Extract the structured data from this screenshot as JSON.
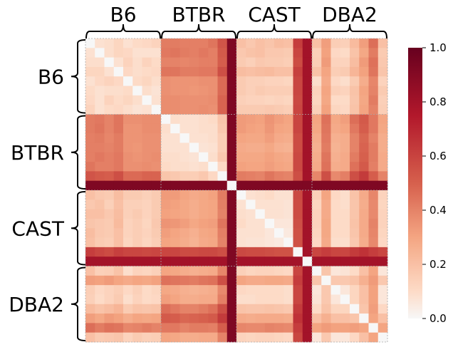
{
  "chart_data": {
    "type": "heatmap",
    "title": "",
    "xlabel": "",
    "ylabel": "",
    "groups": [
      "B6",
      "BTBR",
      "CAST",
      "DBA2"
    ],
    "group_size": 8,
    "colormap": "RdBu_r (upper half: white to dark red)",
    "colorbar": {
      "range": [
        0,
        1
      ],
      "ticks": [
        "0.0",
        "0.2",
        "0.4",
        "0.6",
        "0.8",
        "1.0"
      ],
      "low_color": "#f7f7f7",
      "high_color": "#67001f"
    },
    "gridlines": "dotted grey between groups",
    "matrix": [
      [
        0.0,
        0.08,
        0.09,
        0.12,
        0.08,
        0.1,
        0.11,
        0.13,
        0.42,
        0.42,
        0.41,
        0.41,
        0.41,
        0.44,
        0.54,
        0.92,
        0.2,
        0.17,
        0.2,
        0.18,
        0.21,
        0.2,
        0.62,
        0.8,
        0.2,
        0.32,
        0.15,
        0.14,
        0.22,
        0.32,
        0.46,
        0.2
      ],
      [
        0.08,
        0.0,
        0.09,
        0.12,
        0.11,
        0.08,
        0.08,
        0.08,
        0.43,
        0.44,
        0.42,
        0.41,
        0.43,
        0.41,
        0.52,
        0.92,
        0.17,
        0.19,
        0.2,
        0.17,
        0.17,
        0.16,
        0.59,
        0.8,
        0.14,
        0.31,
        0.11,
        0.1,
        0.19,
        0.29,
        0.42,
        0.16
      ],
      [
        0.09,
        0.09,
        0.0,
        0.08,
        0.13,
        0.09,
        0.13,
        0.1,
        0.4,
        0.4,
        0.39,
        0.4,
        0.41,
        0.41,
        0.51,
        0.92,
        0.16,
        0.14,
        0.17,
        0.16,
        0.16,
        0.15,
        0.57,
        0.8,
        0.15,
        0.33,
        0.13,
        0.13,
        0.21,
        0.33,
        0.45,
        0.17
      ],
      [
        0.12,
        0.12,
        0.08,
        0.0,
        0.11,
        0.09,
        0.1,
        0.11,
        0.44,
        0.44,
        0.42,
        0.42,
        0.43,
        0.43,
        0.56,
        0.92,
        0.21,
        0.2,
        0.21,
        0.22,
        0.2,
        0.2,
        0.61,
        0.8,
        0.19,
        0.3,
        0.15,
        0.16,
        0.24,
        0.31,
        0.44,
        0.18
      ],
      [
        0.08,
        0.11,
        0.13,
        0.11,
        0.0,
        0.1,
        0.12,
        0.09,
        0.36,
        0.35,
        0.35,
        0.35,
        0.36,
        0.36,
        0.47,
        0.92,
        0.16,
        0.14,
        0.14,
        0.13,
        0.13,
        0.12,
        0.59,
        0.8,
        0.09,
        0.28,
        0.11,
        0.09,
        0.16,
        0.27,
        0.39,
        0.13
      ],
      [
        0.1,
        0.08,
        0.09,
        0.09,
        0.1,
        0.0,
        0.09,
        0.07,
        0.36,
        0.35,
        0.35,
        0.34,
        0.35,
        0.36,
        0.47,
        0.92,
        0.16,
        0.14,
        0.16,
        0.15,
        0.15,
        0.15,
        0.59,
        0.8,
        0.13,
        0.3,
        0.14,
        0.13,
        0.19,
        0.3,
        0.4,
        0.16
      ],
      [
        0.11,
        0.08,
        0.13,
        0.1,
        0.12,
        0.09,
        0.0,
        0.08,
        0.37,
        0.37,
        0.36,
        0.36,
        0.36,
        0.37,
        0.49,
        0.92,
        0.14,
        0.13,
        0.13,
        0.12,
        0.13,
        0.12,
        0.58,
        0.8,
        0.12,
        0.29,
        0.1,
        0.1,
        0.18,
        0.29,
        0.42,
        0.14
      ],
      [
        0.13,
        0.08,
        0.1,
        0.11,
        0.09,
        0.07,
        0.08,
        0.0,
        0.37,
        0.37,
        0.36,
        0.36,
        0.37,
        0.36,
        0.49,
        0.92,
        0.16,
        0.16,
        0.16,
        0.17,
        0.16,
        0.15,
        0.59,
        0.8,
        0.14,
        0.31,
        0.12,
        0.11,
        0.19,
        0.3,
        0.4,
        0.15
      ],
      [
        0.42,
        0.43,
        0.4,
        0.44,
        0.36,
        0.36,
        0.37,
        0.37,
        0.0,
        0.09,
        0.08,
        0.08,
        0.09,
        0.1,
        0.18,
        0.92,
        0.33,
        0.32,
        0.31,
        0.35,
        0.32,
        0.3,
        0.59,
        0.8,
        0.3,
        0.45,
        0.29,
        0.32,
        0.46,
        0.52,
        0.43,
        0.3
      ],
      [
        0.42,
        0.44,
        0.4,
        0.44,
        0.35,
        0.35,
        0.37,
        0.37,
        0.09,
        0.0,
        0.08,
        0.08,
        0.09,
        0.09,
        0.17,
        0.92,
        0.33,
        0.31,
        0.3,
        0.34,
        0.3,
        0.29,
        0.59,
        0.8,
        0.29,
        0.44,
        0.28,
        0.3,
        0.43,
        0.51,
        0.43,
        0.29
      ],
      [
        0.41,
        0.42,
        0.39,
        0.42,
        0.35,
        0.35,
        0.36,
        0.36,
        0.08,
        0.08,
        0.0,
        0.08,
        0.08,
        0.09,
        0.15,
        0.92,
        0.3,
        0.29,
        0.29,
        0.32,
        0.28,
        0.27,
        0.57,
        0.8,
        0.27,
        0.43,
        0.26,
        0.27,
        0.4,
        0.48,
        0.4,
        0.27
      ],
      [
        0.41,
        0.41,
        0.4,
        0.42,
        0.35,
        0.34,
        0.36,
        0.36,
        0.08,
        0.08,
        0.08,
        0.0,
        0.07,
        0.08,
        0.15,
        0.92,
        0.28,
        0.27,
        0.27,
        0.29,
        0.26,
        0.25,
        0.57,
        0.8,
        0.26,
        0.42,
        0.25,
        0.27,
        0.4,
        0.49,
        0.42,
        0.27
      ],
      [
        0.41,
        0.43,
        0.41,
        0.43,
        0.36,
        0.35,
        0.36,
        0.37,
        0.09,
        0.09,
        0.08,
        0.07,
        0.0,
        0.09,
        0.17,
        0.92,
        0.29,
        0.29,
        0.29,
        0.31,
        0.29,
        0.28,
        0.58,
        0.8,
        0.27,
        0.44,
        0.26,
        0.28,
        0.42,
        0.5,
        0.42,
        0.28
      ],
      [
        0.44,
        0.41,
        0.41,
        0.43,
        0.36,
        0.36,
        0.37,
        0.36,
        0.1,
        0.09,
        0.09,
        0.08,
        0.09,
        0.0,
        0.11,
        0.92,
        0.31,
        0.3,
        0.3,
        0.32,
        0.3,
        0.29,
        0.58,
        0.8,
        0.28,
        0.45,
        0.27,
        0.28,
        0.45,
        0.52,
        0.41,
        0.28
      ],
      [
        0.54,
        0.52,
        0.51,
        0.56,
        0.47,
        0.47,
        0.49,
        0.49,
        0.18,
        0.17,
        0.15,
        0.15,
        0.17,
        0.11,
        0.0,
        0.92,
        0.42,
        0.41,
        0.4,
        0.44,
        0.41,
        0.4,
        0.56,
        0.8,
        0.39,
        0.56,
        0.38,
        0.41,
        0.56,
        0.63,
        0.51,
        0.4
      ],
      [
        0.92,
        0.92,
        0.92,
        0.92,
        0.92,
        0.92,
        0.92,
        0.92,
        0.92,
        0.92,
        0.92,
        0.92,
        0.92,
        0.92,
        0.92,
        0.0,
        0.92,
        0.92,
        0.92,
        0.92,
        0.92,
        0.92,
        0.92,
        0.92,
        0.92,
        0.92,
        0.92,
        0.92,
        0.92,
        0.92,
        0.92,
        0.92
      ],
      [
        0.2,
        0.17,
        0.16,
        0.21,
        0.16,
        0.16,
        0.14,
        0.16,
        0.33,
        0.33,
        0.3,
        0.28,
        0.29,
        0.31,
        0.42,
        0.92,
        0.0,
        0.08,
        0.09,
        0.1,
        0.08,
        0.08,
        0.58,
        0.8,
        0.14,
        0.3,
        0.11,
        0.09,
        0.19,
        0.28,
        0.39,
        0.13
      ],
      [
        0.17,
        0.19,
        0.14,
        0.2,
        0.14,
        0.14,
        0.13,
        0.16,
        0.32,
        0.31,
        0.29,
        0.27,
        0.29,
        0.3,
        0.41,
        0.92,
        0.08,
        0.0,
        0.08,
        0.08,
        0.08,
        0.07,
        0.57,
        0.8,
        0.12,
        0.28,
        0.1,
        0.09,
        0.18,
        0.27,
        0.38,
        0.12
      ],
      [
        0.2,
        0.2,
        0.17,
        0.21,
        0.14,
        0.16,
        0.13,
        0.16,
        0.31,
        0.3,
        0.29,
        0.27,
        0.29,
        0.3,
        0.4,
        0.92,
        0.09,
        0.08,
        0.0,
        0.08,
        0.08,
        0.07,
        0.57,
        0.8,
        0.13,
        0.28,
        0.1,
        0.1,
        0.18,
        0.28,
        0.38,
        0.13
      ],
      [
        0.18,
        0.17,
        0.16,
        0.22,
        0.13,
        0.15,
        0.12,
        0.17,
        0.35,
        0.34,
        0.32,
        0.29,
        0.31,
        0.32,
        0.44,
        0.92,
        0.1,
        0.08,
        0.08,
        0.0,
        0.06,
        0.06,
        0.56,
        0.8,
        0.13,
        0.29,
        0.1,
        0.1,
        0.19,
        0.28,
        0.4,
        0.13
      ],
      [
        0.21,
        0.17,
        0.16,
        0.2,
        0.13,
        0.15,
        0.13,
        0.16,
        0.32,
        0.3,
        0.28,
        0.26,
        0.29,
        0.3,
        0.41,
        0.92,
        0.08,
        0.08,
        0.08,
        0.06,
        0.0,
        0.05,
        0.55,
        0.8,
        0.12,
        0.29,
        0.1,
        0.1,
        0.18,
        0.28,
        0.39,
        0.12
      ],
      [
        0.2,
        0.16,
        0.15,
        0.2,
        0.12,
        0.15,
        0.12,
        0.15,
        0.3,
        0.29,
        0.27,
        0.25,
        0.28,
        0.29,
        0.4,
        0.92,
        0.08,
        0.07,
        0.07,
        0.06,
        0.05,
        0.0,
        0.55,
        0.8,
        0.11,
        0.28,
        0.09,
        0.09,
        0.17,
        0.27,
        0.38,
        0.11
      ],
      [
        0.62,
        0.59,
        0.57,
        0.61,
        0.59,
        0.59,
        0.58,
        0.59,
        0.59,
        0.59,
        0.57,
        0.57,
        0.58,
        0.58,
        0.56,
        0.92,
        0.58,
        0.57,
        0.57,
        0.56,
        0.55,
        0.55,
        0.0,
        0.8,
        0.59,
        0.62,
        0.59,
        0.59,
        0.63,
        0.66,
        0.62,
        0.59
      ],
      [
        0.8,
        0.8,
        0.8,
        0.8,
        0.8,
        0.8,
        0.8,
        0.8,
        0.8,
        0.8,
        0.8,
        0.8,
        0.8,
        0.8,
        0.8,
        0.92,
        0.8,
        0.8,
        0.8,
        0.8,
        0.8,
        0.8,
        0.8,
        0.0,
        0.8,
        0.8,
        0.8,
        0.8,
        0.8,
        0.8,
        0.8,
        0.8
      ],
      [
        0.2,
        0.14,
        0.15,
        0.19,
        0.09,
        0.13,
        0.12,
        0.14,
        0.3,
        0.29,
        0.27,
        0.26,
        0.27,
        0.28,
        0.39,
        0.92,
        0.14,
        0.12,
        0.13,
        0.13,
        0.12,
        0.11,
        0.59,
        0.8,
        0.0,
        0.18,
        0.06,
        0.07,
        0.1,
        0.2,
        0.3,
        0.06
      ],
      [
        0.32,
        0.31,
        0.33,
        0.3,
        0.28,
        0.3,
        0.29,
        0.31,
        0.45,
        0.44,
        0.43,
        0.42,
        0.44,
        0.45,
        0.56,
        0.92,
        0.3,
        0.28,
        0.28,
        0.29,
        0.29,
        0.28,
        0.62,
        0.8,
        0.18,
        0.0,
        0.17,
        0.17,
        0.19,
        0.26,
        0.33,
        0.17
      ],
      [
        0.15,
        0.11,
        0.13,
        0.15,
        0.11,
        0.14,
        0.1,
        0.12,
        0.29,
        0.28,
        0.26,
        0.25,
        0.26,
        0.27,
        0.38,
        0.92,
        0.11,
        0.1,
        0.1,
        0.1,
        0.1,
        0.09,
        0.59,
        0.8,
        0.06,
        0.17,
        0.0,
        0.06,
        0.12,
        0.2,
        0.31,
        0.06
      ],
      [
        0.14,
        0.1,
        0.13,
        0.16,
        0.09,
        0.13,
        0.1,
        0.11,
        0.32,
        0.3,
        0.27,
        0.27,
        0.28,
        0.28,
        0.41,
        0.92,
        0.09,
        0.09,
        0.1,
        0.1,
        0.1,
        0.09,
        0.59,
        0.8,
        0.07,
        0.17,
        0.06,
        0.0,
        0.12,
        0.2,
        0.31,
        0.06
      ],
      [
        0.22,
        0.19,
        0.21,
        0.24,
        0.16,
        0.19,
        0.18,
        0.19,
        0.46,
        0.43,
        0.4,
        0.4,
        0.42,
        0.45,
        0.56,
        0.92,
        0.19,
        0.18,
        0.18,
        0.19,
        0.18,
        0.17,
        0.63,
        0.8,
        0.1,
        0.19,
        0.12,
        0.12,
        0.0,
        0.18,
        0.32,
        0.11
      ],
      [
        0.32,
        0.29,
        0.33,
        0.31,
        0.27,
        0.3,
        0.29,
        0.3,
        0.52,
        0.51,
        0.48,
        0.49,
        0.5,
        0.52,
        0.63,
        0.92,
        0.28,
        0.27,
        0.28,
        0.28,
        0.28,
        0.27,
        0.66,
        0.8,
        0.2,
        0.26,
        0.2,
        0.2,
        0.18,
        0.0,
        0.3,
        0.2
      ],
      [
        0.46,
        0.42,
        0.45,
        0.44,
        0.39,
        0.4,
        0.42,
        0.4,
        0.43,
        0.43,
        0.4,
        0.42,
        0.42,
        0.41,
        0.51,
        0.92,
        0.39,
        0.38,
        0.38,
        0.4,
        0.39,
        0.38,
        0.62,
        0.8,
        0.3,
        0.33,
        0.31,
        0.31,
        0.32,
        0.3,
        0.0,
        0.3
      ],
      [
        0.2,
        0.16,
        0.17,
        0.18,
        0.13,
        0.16,
        0.14,
        0.15,
        0.3,
        0.29,
        0.27,
        0.27,
        0.28,
        0.28,
        0.4,
        0.92,
        0.13,
        0.12,
        0.13,
        0.13,
        0.12,
        0.11,
        0.59,
        0.8,
        0.06,
        0.17,
        0.06,
        0.06,
        0.11,
        0.2,
        0.3,
        0.0
      ]
    ]
  }
}
